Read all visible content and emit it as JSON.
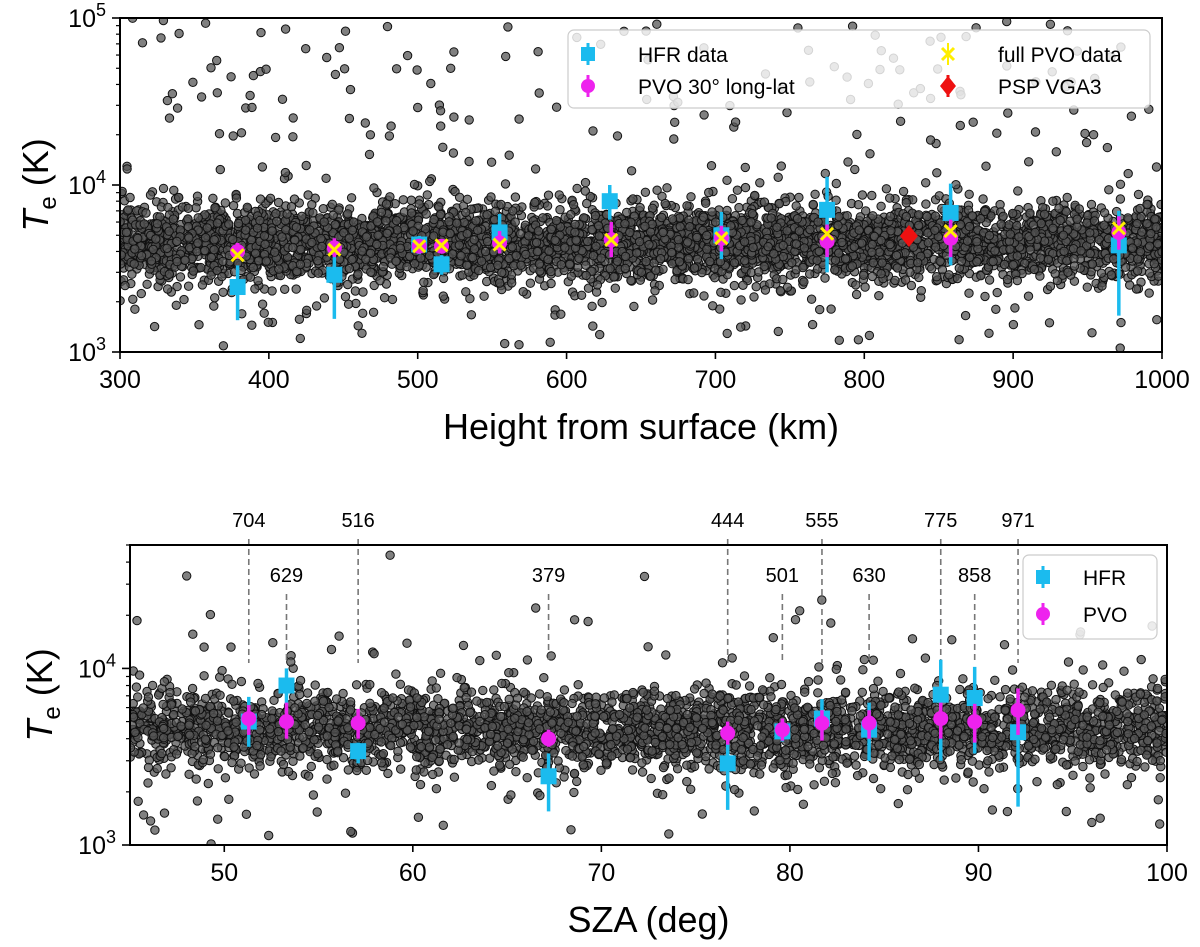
{
  "chart_data": [
    {
      "type": "scatter",
      "xlabel": "Height from surface (km)",
      "ylabel_main": "T",
      "ylabel_sub": "e",
      "ylabel_unit": " (K)",
      "xlim": [
        300,
        1000
      ],
      "ylim": [
        1000,
        100000
      ],
      "y_scale": "log",
      "x_ticks": [
        300,
        400,
        500,
        600,
        700,
        800,
        900,
        1000
      ],
      "y_ticks": [
        {
          "base": "10",
          "exp": "3",
          "value": 1000
        },
        {
          "base": "10",
          "exp": "4",
          "value": 10000
        },
        {
          "base": "10",
          "exp": "5",
          "value": 100000
        }
      ],
      "legend_position": "top-right",
      "legend": [
        {
          "key": "hfr",
          "label": "HFR data"
        },
        {
          "key": "pvo",
          "label": "PVO 30° long-lat"
        },
        {
          "key": "full",
          "label": "full PVO data"
        },
        {
          "key": "psp",
          "label": "PSP VGA3"
        }
      ],
      "background_cloud": {
        "color": "#000000",
        "description": "dense grey/black scatter of individual PVO measurements",
        "center_temperature": 4500
      },
      "series": [
        {
          "key": "hfr",
          "color": "#1bbbee",
          "marker": "square",
          "points": [
            {
              "x": 379,
              "y": 2450,
              "ylo": 1550,
              "yhi": 3300
            },
            {
              "x": 444,
              "y": 2900,
              "ylo": 1580,
              "yhi": 4250
            },
            {
              "x": 501,
              "y": 4400,
              "ylo": 3850,
              "yhi": 4950
            },
            {
              "x": 516,
              "y": 3350,
              "ylo": 2900,
              "yhi": 3800
            },
            {
              "x": 555,
              "y": 5200,
              "ylo": 4000,
              "yhi": 6700
            },
            {
              "x": 629,
              "y": 8000,
              "ylo": 6200,
              "yhi": 10000
            },
            {
              "x": 704,
              "y": 5000,
              "ylo": 3600,
              "yhi": 6900
            },
            {
              "x": 775,
              "y": 7100,
              "ylo": 3000,
              "yhi": 11200
            },
            {
              "x": 858,
              "y": 6800,
              "ylo": 3300,
              "yhi": 10200
            },
            {
              "x": 971,
              "y": 4350,
              "ylo": 1650,
              "yhi": 7000
            }
          ]
        },
        {
          "key": "pvo",
          "color": "#ee22ee",
          "marker": "circle",
          "points": [
            {
              "x": 379,
              "y": 4000,
              "ylo": 3600,
              "yhi": 4500
            },
            {
              "x": 444,
              "y": 4200,
              "ylo": 3700,
              "yhi": 4800
            },
            {
              "x": 501,
              "y": 4300,
              "ylo": 3900,
              "yhi": 4700
            },
            {
              "x": 516,
              "y": 4300,
              "ylo": 3900,
              "yhi": 4700
            },
            {
              "x": 555,
              "y": 4500,
              "ylo": 3900,
              "yhi": 5300
            },
            {
              "x": 630,
              "y": 4700,
              "ylo": 3700,
              "yhi": 6000
            },
            {
              "x": 704,
              "y": 4800,
              "ylo": 4000,
              "yhi": 5700
            },
            {
              "x": 775,
              "y": 4600,
              "ylo": 3700,
              "yhi": 5800
            },
            {
              "x": 858,
              "y": 4800,
              "ylo": 3700,
              "yhi": 6200
            },
            {
              "x": 971,
              "y": 5200,
              "ylo": 4100,
              "yhi": 6500
            }
          ]
        },
        {
          "key": "full",
          "color": "#ffee00",
          "marker": "x",
          "points": [
            {
              "x": 379,
              "y": 3800
            },
            {
              "x": 444,
              "y": 4100
            },
            {
              "x": 501,
              "y": 4300
            },
            {
              "x": 516,
              "y": 4350
            },
            {
              "x": 555,
              "y": 4400
            },
            {
              "x": 630,
              "y": 4700
            },
            {
              "x": 704,
              "y": 4800
            },
            {
              "x": 775,
              "y": 5100
            },
            {
              "x": 858,
              "y": 5300
            },
            {
              "x": 971,
              "y": 5500
            }
          ]
        },
        {
          "key": "psp",
          "color": "#ee1111",
          "marker": "diamond",
          "points": [
            {
              "x": 830,
              "y": 4950,
              "ylo": 4500,
              "yhi": 5400
            }
          ]
        }
      ]
    },
    {
      "type": "scatter",
      "xlabel": "SZA (deg)",
      "ylabel_main": "T",
      "ylabel_sub": "e",
      "ylabel_unit": " (K)",
      "xlim": [
        45,
        100
      ],
      "ylim": [
        1000,
        50000
      ],
      "y_scale": "log",
      "x_ticks": [
        50,
        60,
        70,
        80,
        90,
        100
      ],
      "y_ticks": [
        {
          "base": "10",
          "exp": "3",
          "value": 1000
        },
        {
          "base": "10",
          "exp": "4",
          "value": 10000
        }
      ],
      "legend_position": "top-right",
      "legend": [
        {
          "key": "hfr",
          "label": "HFR"
        },
        {
          "key": "pvo",
          "label": "PVO"
        }
      ],
      "background_cloud": {
        "color": "#000000",
        "description": "dense grey/black scatter of individual PVO measurements",
        "center_temperature": 4500
      },
      "height_annotations": [
        {
          "label": "704",
          "x": 51.3,
          "row": 0
        },
        {
          "label": "629",
          "x": 53.3,
          "row": 1
        },
        {
          "label": "516",
          "x": 57.1,
          "row": 0
        },
        {
          "label": "379",
          "x": 67.2,
          "row": 1
        },
        {
          "label": "444",
          "x": 76.7,
          "row": 0
        },
        {
          "label": "501",
          "x": 79.6,
          "row": 1
        },
        {
          "label": "555",
          "x": 81.7,
          "row": 0
        },
        {
          "label": "630",
          "x": 84.2,
          "row": 1
        },
        {
          "label": "775",
          "x": 88.0,
          "row": 0
        },
        {
          "label": "858",
          "x": 89.8,
          "row": 1
        },
        {
          "label": "971",
          "x": 92.1,
          "row": 0
        }
      ],
      "series": [
        {
          "key": "hfr",
          "color": "#1bbbee",
          "marker": "square",
          "points": [
            {
              "x": 51.3,
              "y": 5000,
              "ylo": 3600,
              "yhi": 6900
            },
            {
              "x": 53.3,
              "y": 8000,
              "ylo": 6200,
              "yhi": 10000
            },
            {
              "x": 57.1,
              "y": 3400,
              "ylo": 2900,
              "yhi": 3800
            },
            {
              "x": 67.2,
              "y": 2450,
              "ylo": 1550,
              "yhi": 3300
            },
            {
              "x": 76.7,
              "y": 2900,
              "ylo": 1580,
              "yhi": 4250
            },
            {
              "x": 79.6,
              "y": 4400,
              "ylo": 3850,
              "yhi": 4950
            },
            {
              "x": 81.7,
              "y": 5200,
              "ylo": 4000,
              "yhi": 6700
            },
            {
              "x": 84.2,
              "y": 4500,
              "ylo": 3000,
              "yhi": 6400
            },
            {
              "x": 88.0,
              "y": 7100,
              "ylo": 3000,
              "yhi": 11200
            },
            {
              "x": 89.8,
              "y": 6800,
              "ylo": 3300,
              "yhi": 10200
            },
            {
              "x": 92.1,
              "y": 4350,
              "ylo": 1650,
              "yhi": 7000
            }
          ]
        },
        {
          "key": "pvo",
          "color": "#ee22ee",
          "marker": "circle",
          "points": [
            {
              "x": 51.3,
              "y": 5200,
              "ylo": 4200,
              "yhi": 6200
            },
            {
              "x": 53.3,
              "y": 5000,
              "ylo": 4000,
              "yhi": 6400
            },
            {
              "x": 57.1,
              "y": 4900,
              "ylo": 4000,
              "yhi": 5900
            },
            {
              "x": 67.2,
              "y": 4000,
              "ylo": 3600,
              "yhi": 4500
            },
            {
              "x": 76.7,
              "y": 4300,
              "ylo": 3700,
              "yhi": 5000
            },
            {
              "x": 79.6,
              "y": 4500,
              "ylo": 3900,
              "yhi": 5200
            },
            {
              "x": 81.7,
              "y": 4900,
              "ylo": 3900,
              "yhi": 5800
            },
            {
              "x": 84.2,
              "y": 4900,
              "ylo": 4000,
              "yhi": 5800
            },
            {
              "x": 88.0,
              "y": 5200,
              "ylo": 4000,
              "yhi": 6400
            },
            {
              "x": 89.8,
              "y": 5000,
              "ylo": 3800,
              "yhi": 6300
            },
            {
              "x": 92.1,
              "y": 5800,
              "ylo": 4200,
              "yhi": 7700
            }
          ]
        }
      ]
    }
  ]
}
